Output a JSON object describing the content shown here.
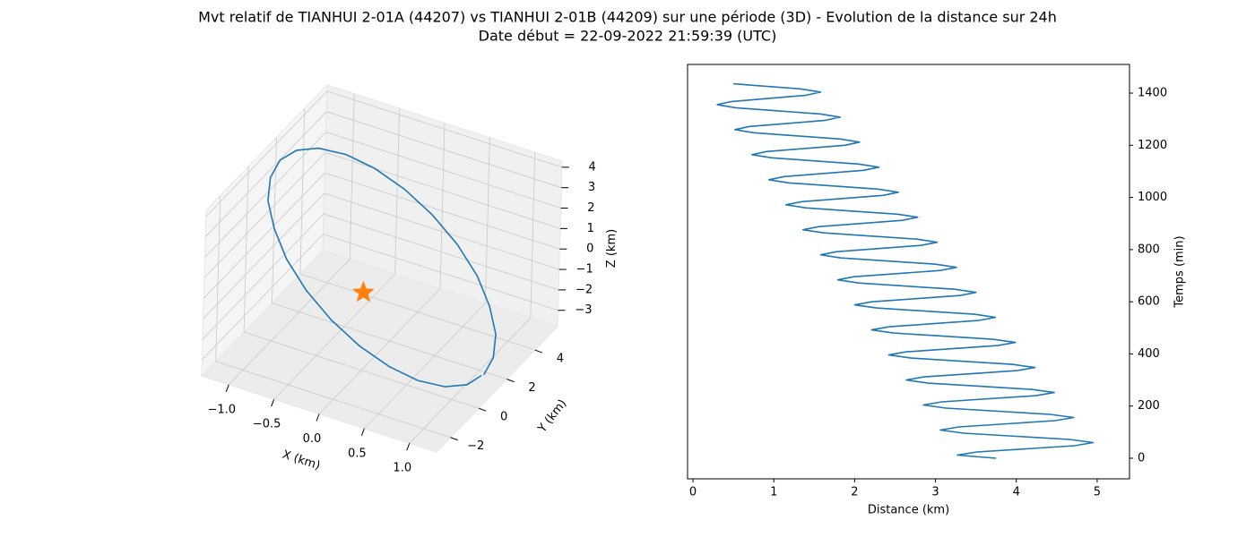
{
  "title": "Mvt relatif de TIANHUI 2-01A (44207) vs TIANHUI 2-01B (44209) sur une période (3D) - Evolution de la distance sur 24h",
  "subtitle": "Date début = 22-09-2022 21:59:39 (UTC)",
  "chart_data": [
    {
      "type": "line3d",
      "xlabel": "X (km)",
      "ylabel": "Y (km)",
      "zlabel": "Z (km)",
      "xlim": [
        -1.3,
        1.3
      ],
      "ylim": [
        -3,
        5.6
      ],
      "zlim": [
        -3.8,
        4.3
      ],
      "xticks": [
        {
          "value": -1,
          "label": "−1.0"
        },
        {
          "value": -0.5,
          "label": "−0.5"
        },
        {
          "value": 0,
          "label": "0.0"
        },
        0.5,
        {
          "value": 1,
          "label": "1.0"
        }
      ],
      "yticks": [
        {
          "value": -2,
          "label": "−2"
        },
        0,
        2,
        4
      ],
      "zticks": [
        {
          "value": -3,
          "label": "−3"
        },
        {
          "value": -2,
          "label": "−2"
        },
        {
          "value": -1,
          "label": "−1"
        },
        0,
        1,
        2,
        3,
        4
      ],
      "series": [
        {
          "color": "#1f77b4",
          "x": [
            1.15,
            1.11,
            1.0,
            0.81,
            0.58,
            0.3,
            0,
            -0.3,
            -0.58,
            -0.81,
            -1.0,
            -1.11,
            -1.15,
            -1.11,
            -1.0,
            -0.81,
            -0.58,
            -0.3,
            0,
            0.3,
            0.58,
            0.81,
            1.0,
            1.11,
            1.14
          ],
          "y": [
            1.3,
            2.23,
            3.1,
            3.85,
            4.42,
            4.78,
            4.9,
            4.78,
            4.42,
            3.85,
            3.1,
            2.23,
            1.3,
            0.37,
            -0.5,
            -1.25,
            -1.82,
            -2.18,
            -2.3,
            -2.18,
            -1.82,
            -1.25,
            -0.5,
            0.37,
            1.2
          ],
          "z": [
            -3.3,
            -3.18,
            -2.82,
            -2.25,
            -1.5,
            -0.63,
            0.3,
            1.23,
            2.1,
            2.85,
            3.42,
            3.78,
            3.9,
            3.78,
            3.42,
            2.85,
            2.1,
            1.23,
            0.3,
            -0.63,
            -1.5,
            -2.25,
            -2.82,
            -3.18,
            -3.28
          ]
        },
        {
          "color": "#ff7f0e",
          "marker": "star",
          "x": [
            0
          ],
          "y": [
            0
          ],
          "z": [
            0
          ]
        }
      ]
    },
    {
      "type": "line",
      "xlabel": "Distance (km)",
      "ylabel": "Temps (min)",
      "yaxis": "right",
      "xlim": [
        -0.067,
        5.4
      ],
      "ylim": [
        -79,
        1510
      ],
      "xticks": [
        0,
        1,
        2,
        3,
        4,
        5
      ],
      "yticks": [
        0,
        200,
        400,
        600,
        800,
        1000,
        1200,
        1400
      ],
      "series": [
        {
          "color": "#1f77b4",
          "x": [
            3.75,
            3.27,
            3.51,
            4.12,
            4.72,
            4.95,
            4.66,
            4.0,
            3.35,
            3.06,
            3.29,
            3.89,
            4.48,
            4.71,
            4.42,
            3.78,
            3.13,
            2.85,
            3.08,
            3.66,
            4.24,
            4.47,
            4.19,
            3.55,
            2.91,
            2.64,
            2.86,
            3.44,
            4.01,
            4.23,
            3.95,
            3.32,
            2.7,
            2.42,
            2.64,
            3.21,
            3.77,
            3.99,
            3.71,
            3.1,
            2.48,
            2.21,
            2.43,
            2.98,
            3.53,
            3.74,
            3.48,
            2.87,
            2.27,
            2.0,
            2.21,
            2.76,
            3.3,
            3.5,
            3.24,
            2.64,
            2.05,
            1.79,
            1.99,
            2.53,
            3.06,
            3.26,
            3.0,
            2.42,
            1.83,
            1.58,
            1.78,
            2.3,
            2.82,
            3.02,
            2.77,
            2.19,
            1.62,
            1.36,
            1.56,
            2.08,
            2.59,
            2.78,
            2.53,
            1.96,
            1.4,
            1.15,
            1.35,
            1.85,
            2.35,
            2.54,
            2.29,
            1.74,
            1.18,
            0.94,
            1.13,
            1.62,
            2.11,
            2.3,
            2.05,
            1.51,
            0.97,
            0.73,
            0.91,
            1.4,
            1.88,
            2.06,
            1.82,
            1.28,
            0.75,
            0.52,
            0.7,
            1.17,
            1.64,
            1.82,
            1.58,
            1.06,
            0.53,
            0.3,
            0.48,
            0.94,
            1.4,
            1.58,
            1.34,
            0.83,
            0.5
          ],
          "y": [
            0,
            12,
            24,
            36,
            48,
            60,
            72,
            84,
            96,
            108,
            120,
            132,
            144,
            156,
            168,
            180,
            192,
            204,
            216,
            228,
            240,
            252,
            264,
            276,
            288,
            300,
            312,
            324,
            336,
            348,
            360,
            372,
            384,
            396,
            408,
            420,
            432,
            444,
            456,
            468,
            480,
            492,
            504,
            516,
            528,
            540,
            552,
            564,
            576,
            588,
            600,
            612,
            624,
            636,
            648,
            660,
            672,
            684,
            696,
            708,
            720,
            732,
            744,
            756,
            768,
            780,
            792,
            804,
            816,
            828,
            840,
            852,
            864,
            876,
            888,
            900,
            912,
            924,
            936,
            948,
            960,
            972,
            984,
            996,
            1008,
            1020,
            1032,
            1044,
            1056,
            1068,
            1080,
            1092,
            1104,
            1116,
            1128,
            1140,
            1152,
            1164,
            1176,
            1188,
            1200,
            1212,
            1224,
            1236,
            1248,
            1260,
            1272,
            1284,
            1296,
            1308,
            1320,
            1332,
            1344,
            1356,
            1368,
            1380,
            1392,
            1404,
            1416,
            1428,
            1436
          ]
        }
      ]
    }
  ]
}
